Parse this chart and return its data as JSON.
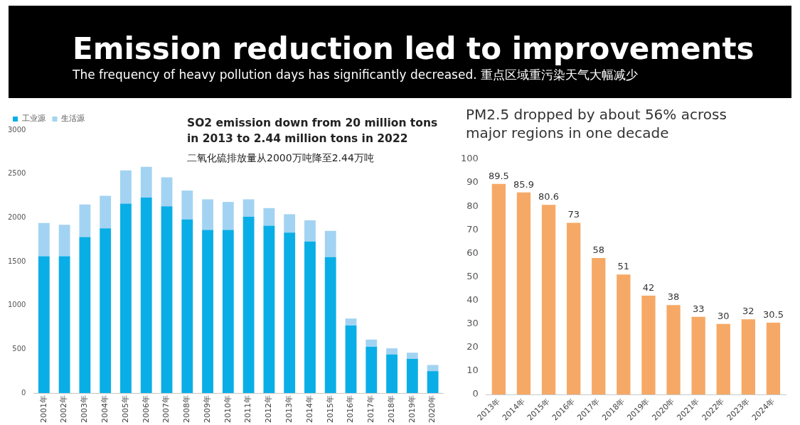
{
  "chart_data": [
    {
      "type": "other",
      "title": "Emission reduction led to improvements",
      "subtitle": "The frequency of heavy pollution days has significantly decreased. 重点区域重污染天气大幅减少"
    },
    {
      "type": "bar",
      "title": "SO2 emission down from 20 million tons in 2013 to 2.44 million tons in 2022",
      "subtitle": "二氧化硫排放量从2000万吨降至2.44万吨",
      "categories": [
        "2001年",
        "2002年",
        "2003年",
        "2004年",
        "2005年",
        "2006年",
        "2007年",
        "2008年",
        "2009年",
        "2010年",
        "2011年",
        "2012年",
        "2013年",
        "2014年",
        "2015年",
        "2016年",
        "2017年",
        "2018年",
        "2019年",
        "2020年"
      ],
      "stacked": true,
      "series": [
        {
          "name": "工业源",
          "color": "#0aaee6",
          "values": [
            1560,
            1560,
            1780,
            1880,
            2160,
            2230,
            2130,
            1980,
            1860,
            1860,
            2010,
            1910,
            1830,
            1730,
            1550,
            770,
            530,
            440,
            390,
            250
          ]
        },
        {
          "name": "生活源",
          "color": "#a3d3f2",
          "values": [
            380,
            360,
            370,
            370,
            380,
            350,
            330,
            330,
            350,
            320,
            200,
            200,
            210,
            240,
            300,
            80,
            80,
            70,
            70,
            70
          ]
        }
      ],
      "ylim": [
        0,
        3000
      ],
      "yticks": [
        0,
        500,
        1000,
        1500,
        2000,
        2500,
        3000
      ],
      "grid": false,
      "legend": "top left"
    },
    {
      "type": "bar",
      "title": "PM2.5 dropped by about 56% across major regions in one decade",
      "categories": [
        "2013年",
        "2014年",
        "2015年",
        "2016年",
        "2017年",
        "2018年",
        "2019年",
        "2020年",
        "2021年",
        "2022年",
        "2023年",
        "2024年"
      ],
      "values": [
        89.5,
        85.9,
        80.6,
        73,
        58,
        51,
        42,
        38,
        33,
        30,
        32,
        30.5
      ],
      "color": "#f6a966",
      "ylim": [
        0,
        100
      ],
      "yticks": [
        0,
        10,
        20,
        30,
        40,
        50,
        60,
        70,
        80,
        90,
        100
      ],
      "grid": false,
      "data_labels": true
    }
  ]
}
